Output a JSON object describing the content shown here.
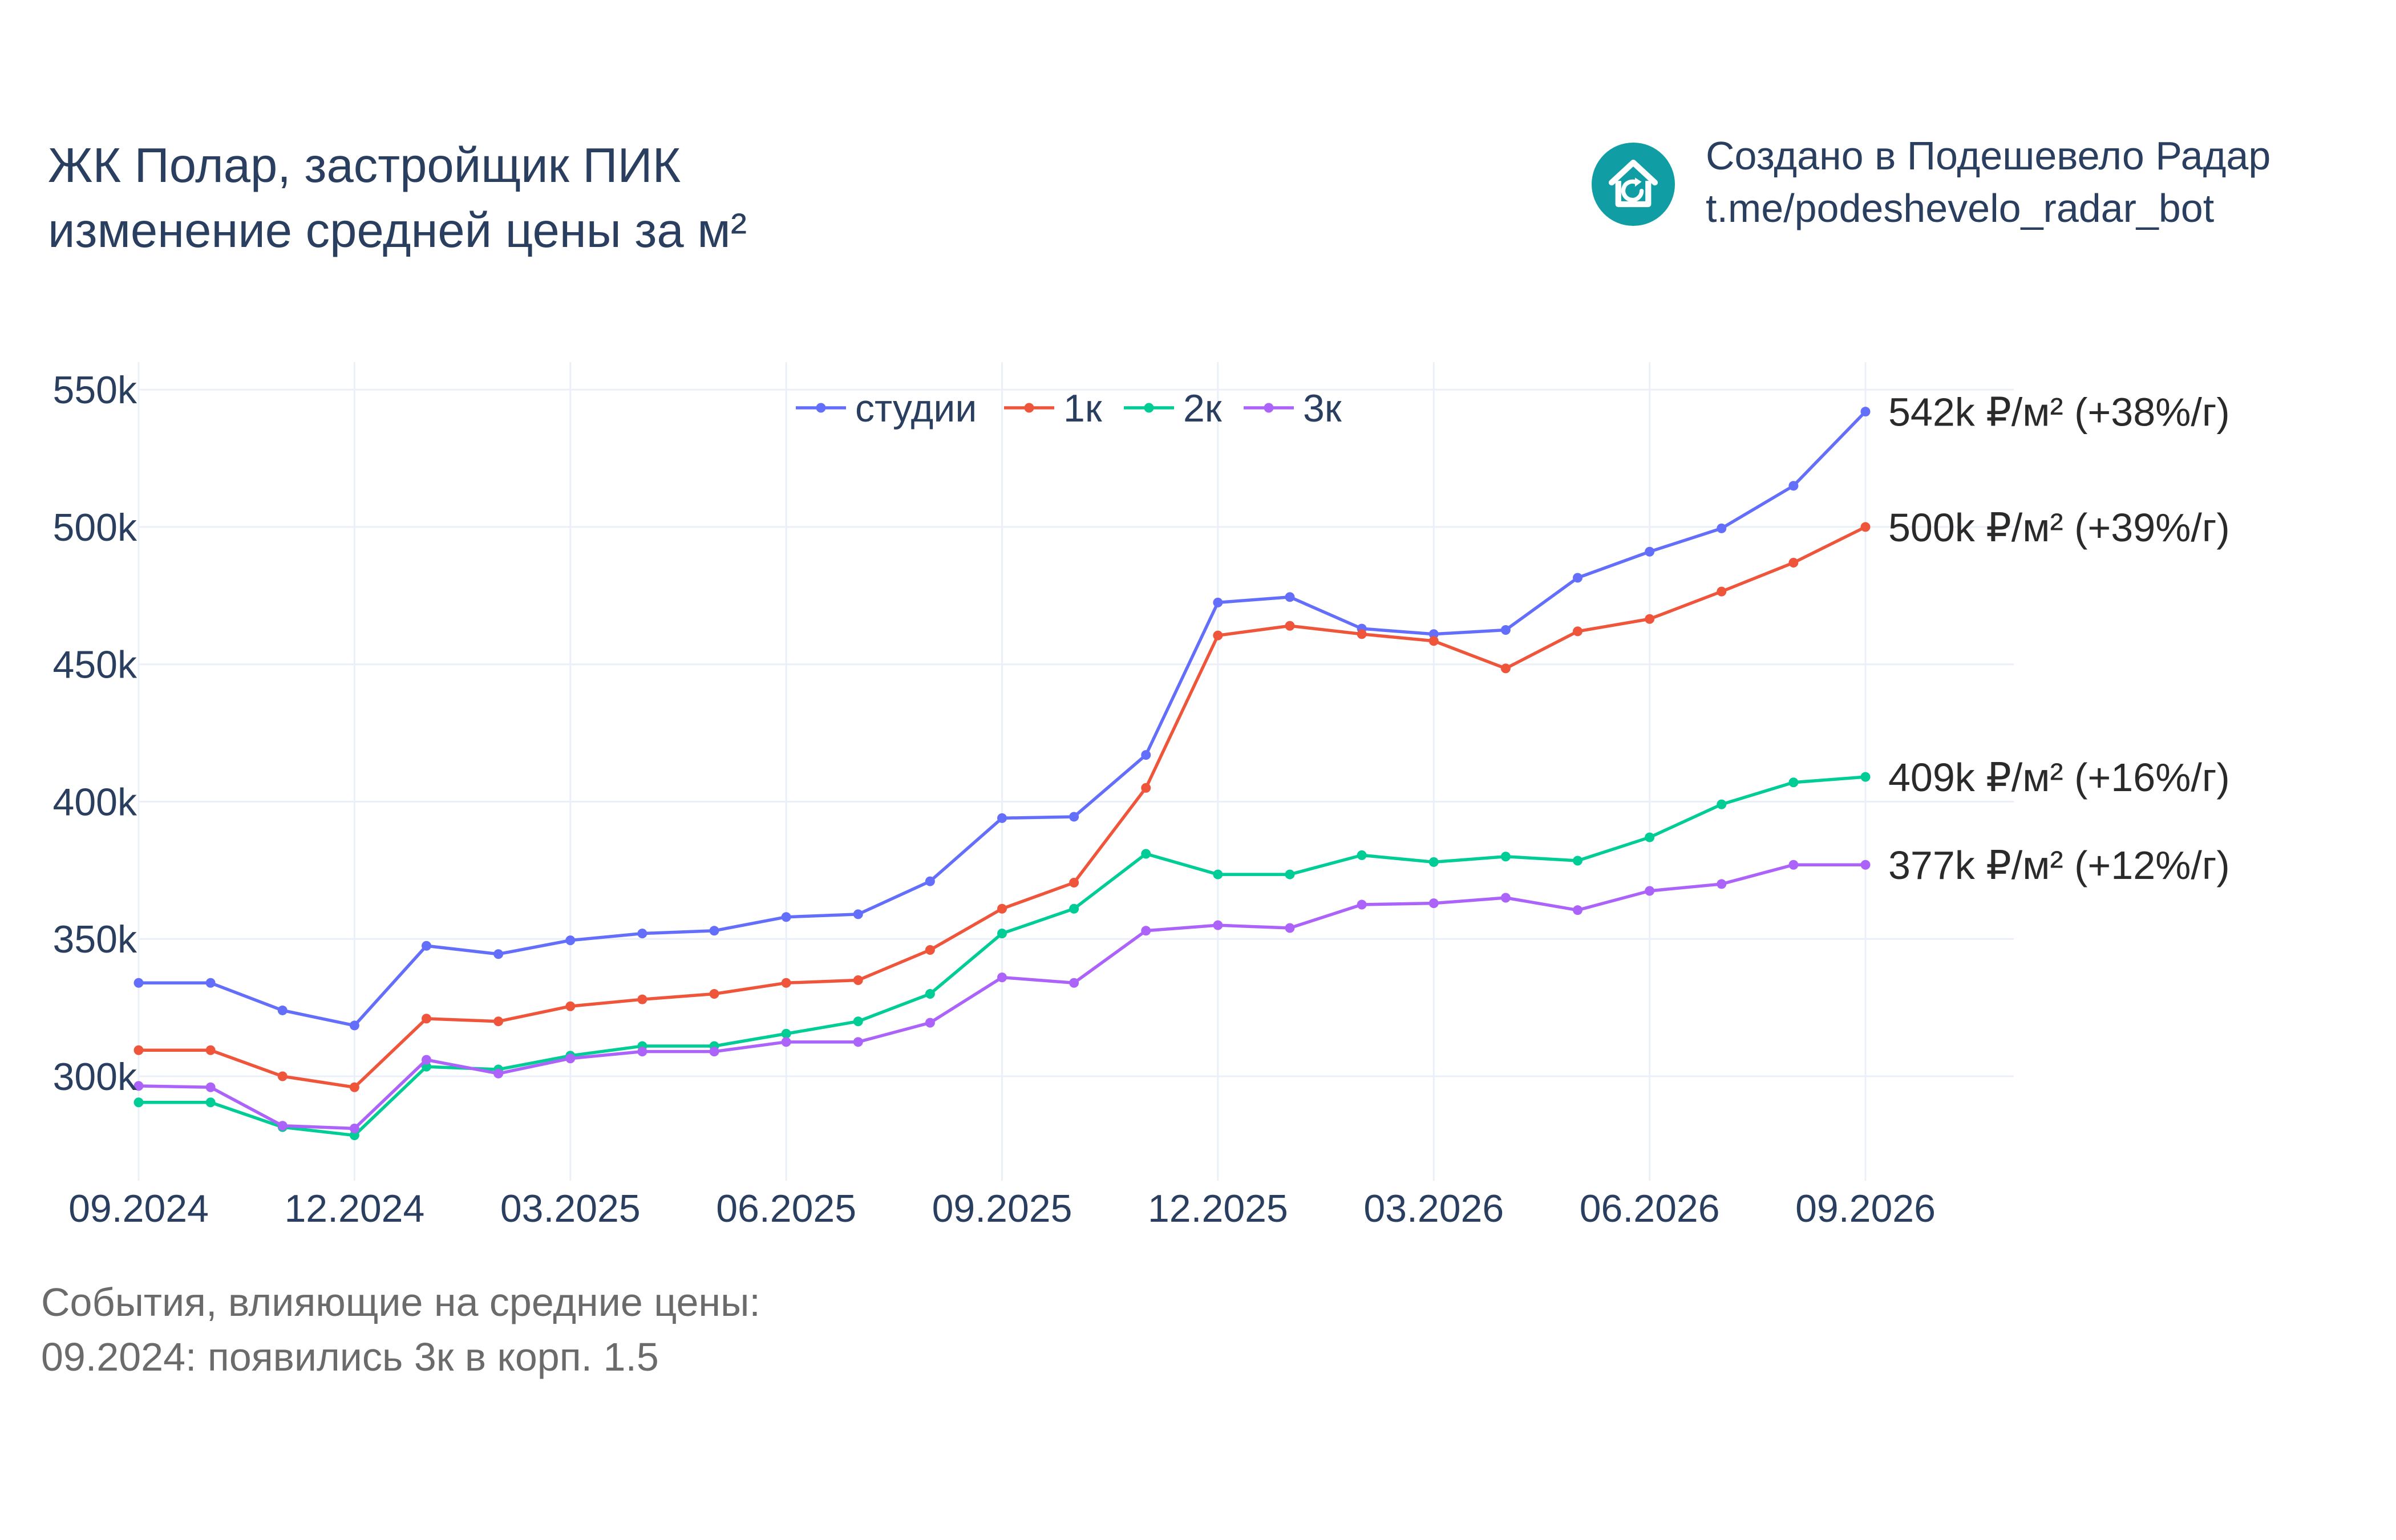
{
  "title": {
    "line1": "ЖК Полар, застройщик ПИК",
    "line2": "изменение средней цены за м²"
  },
  "branding": {
    "line1": "Создано в Подешевело Радар",
    "line2": "t.me/podeshevelo_radar_bot",
    "logo_icon": "house-refresh-icon",
    "logo_color": "#119da4"
  },
  "events": {
    "heading": "События, влияющие на средние цены:",
    "items": [
      "09.2024: появились 3к в корп. 1.5"
    ]
  },
  "chart_data": {
    "type": "line",
    "x": [
      "2024-09",
      "2024-10",
      "2024-11",
      "2024-12",
      "2025-01",
      "2025-02",
      "2025-03",
      "2025-04",
      "2025-05",
      "2025-06",
      "2025-07",
      "2025-08",
      "2025-09",
      "2025-10",
      "2025-11",
      "2025-12",
      "2026-01",
      "2026-02",
      "2026-03",
      "2026-04",
      "2026-05",
      "2026-06",
      "2026-07",
      "2026-08",
      "2026-09"
    ],
    "xticks": [
      "09.2024",
      "12.2024",
      "03.2025",
      "06.2025",
      "09.2025",
      "12.2025",
      "03.2026",
      "06.2026",
      "09.2026"
    ],
    "xtick_positions": [
      "2024-09",
      "2024-12",
      "2025-03",
      "2025-06",
      "2025-09",
      "2025-12",
      "2026-03",
      "2026-06",
      "2026-09"
    ],
    "yticks": [
      300000,
      350000,
      400000,
      450000,
      500000,
      550000
    ],
    "ytick_labels": [
      "300k",
      "350k",
      "400k",
      "450k",
      "500k",
      "550k"
    ],
    "ylim": [
      262000,
      560000
    ],
    "grid": true,
    "legend_position": "top-center",
    "series": [
      {
        "name": "студии",
        "color": "#636efa",
        "values": [
          334000,
          334000,
          324000,
          318500,
          347500,
          344500,
          349500,
          352000,
          353000,
          358000,
          359000,
          371000,
          394000,
          394500,
          417000,
          472500,
          474500,
          463000,
          461000,
          462500,
          481500,
          491000,
          499500,
          515000,
          542000
        ],
        "end_label": "542k ₽/м² (+38%/г)"
      },
      {
        "name": "1к",
        "color": "#ef553b",
        "values": [
          309500,
          309500,
          300000,
          296000,
          321000,
          320000,
          325500,
          328000,
          330000,
          334000,
          335000,
          346000,
          361000,
          370500,
          405000,
          460500,
          464000,
          461000,
          458500,
          448500,
          462000,
          466500,
          476500,
          487000,
          500000
        ],
        "end_label": "500k ₽/м² (+39%/г)"
      },
      {
        "name": "2к",
        "color": "#00cc96",
        "values": [
          290500,
          290500,
          281500,
          278500,
          303500,
          302500,
          307500,
          311000,
          311000,
          315500,
          320000,
          330000,
          352000,
          361000,
          381000,
          373500,
          373500,
          380500,
          378000,
          380000,
          378500,
          387000,
          399000,
          407000,
          409000
        ],
        "end_label": "409k ₽/м² (+16%/г)"
      },
      {
        "name": "3к",
        "color": "#ab63fa",
        "values": [
          296500,
          296000,
          282000,
          281000,
          306000,
          301000,
          306500,
          309000,
          309000,
          312500,
          312500,
          319500,
          336000,
          334000,
          353000,
          355000,
          354000,
          362500,
          363000,
          365000,
          360500,
          367500,
          370000,
          377000,
          377000
        ],
        "end_label": "377k ₽/м² (+12%/г)"
      }
    ]
  }
}
